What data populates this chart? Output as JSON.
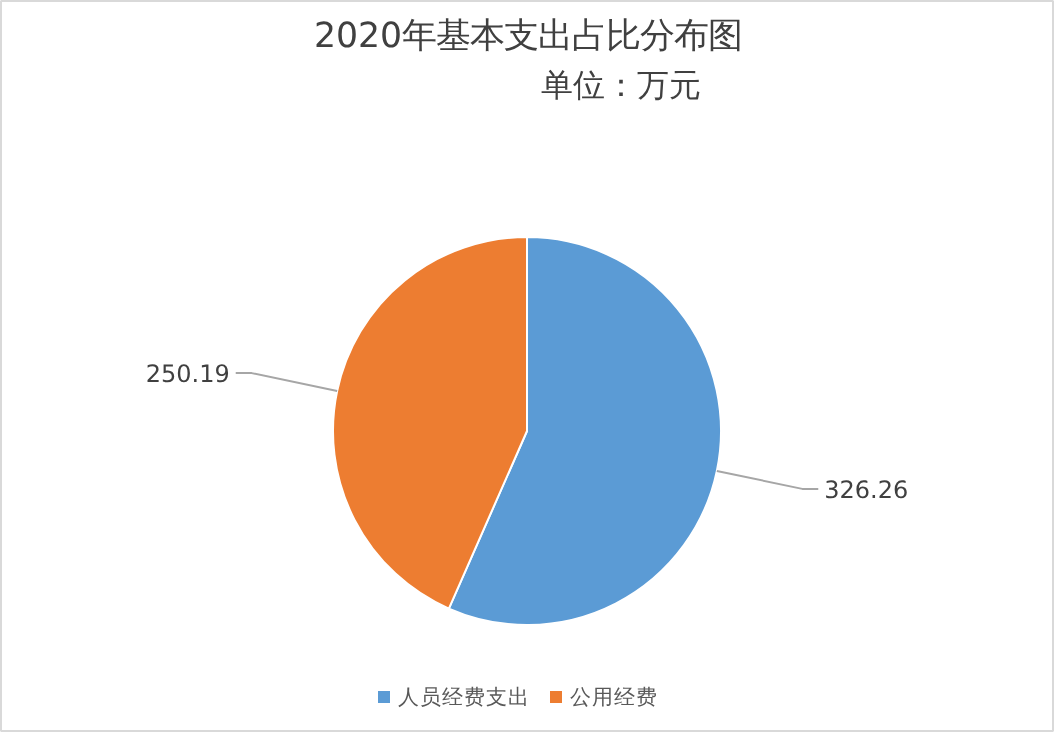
{
  "chart_data": {
    "type": "pie",
    "title": "2020年基本支出占比分布图",
    "subtitle": "单位：万元",
    "categories": [
      "人员经费支出",
      "公用经费"
    ],
    "values": [
      326.26,
      250.19
    ],
    "colors": [
      "#5b9bd5",
      "#ed7d31"
    ],
    "data_labels": true,
    "legend": "bottom"
  }
}
